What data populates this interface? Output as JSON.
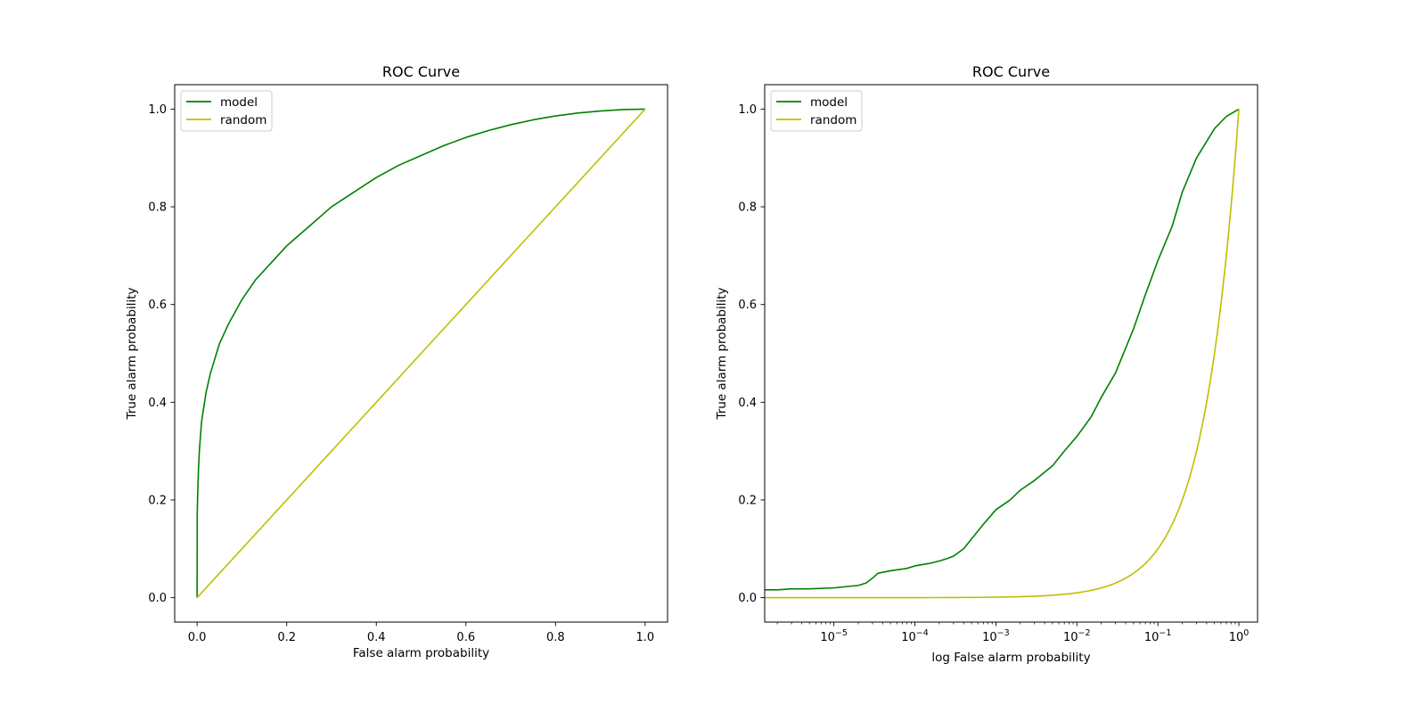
{
  "chart_data": [
    {
      "type": "line",
      "title": "ROC Curve",
      "xlabel": "False alarm probability",
      "ylabel": "True alarm probability",
      "xscale": "linear",
      "xlim": [
        -0.05,
        1.05
      ],
      "ylim": [
        -0.05,
        1.05
      ],
      "xticks": [
        0.0,
        0.2,
        0.4,
        0.6,
        0.8,
        1.0
      ],
      "xtick_labels": [
        "0.0",
        "0.2",
        "0.4",
        "0.6",
        "0.8",
        "1.0"
      ],
      "yticks": [
        0.0,
        0.2,
        0.4,
        0.6,
        0.8,
        1.0
      ],
      "ytick_labels": [
        "0.0",
        "0.2",
        "0.4",
        "0.6",
        "0.8",
        "1.0"
      ],
      "grid": false,
      "legend": "upper-left",
      "series": [
        {
          "name": "model",
          "color": "#008000",
          "x": [
            0,
            0.0003,
            0.001,
            0.003,
            0.005,
            0.01,
            0.02,
            0.03,
            0.05,
            0.07,
            0.1,
            0.13,
            0.16,
            0.2,
            0.25,
            0.3,
            0.35,
            0.4,
            0.45,
            0.5,
            0.55,
            0.6,
            0.65,
            0.7,
            0.75,
            0.8,
            0.85,
            0.9,
            0.95,
            1.0
          ],
          "y": [
            0,
            0.17,
            0.2,
            0.26,
            0.3,
            0.36,
            0.42,
            0.46,
            0.52,
            0.56,
            0.61,
            0.65,
            0.68,
            0.72,
            0.76,
            0.8,
            0.83,
            0.86,
            0.885,
            0.905,
            0.925,
            0.942,
            0.956,
            0.968,
            0.978,
            0.986,
            0.992,
            0.996,
            0.999,
            1.0
          ]
        },
        {
          "name": "random",
          "color": "#bfbf00",
          "x": [
            0,
            1.0
          ],
          "y": [
            0,
            1.0
          ]
        }
      ]
    },
    {
      "type": "line",
      "title": "ROC Curve",
      "xlabel": "log False alarm probability",
      "ylabel": "True alarm probability",
      "xscale": "log",
      "xlim": [
        1.4e-06,
        1.7
      ],
      "ylim": [
        -0.05,
        1.05
      ],
      "xticks": [
        1e-05,
        0.0001,
        0.001,
        0.01,
        0.1,
        1
      ],
      "xtick_labels": [
        {
          "base": "10",
          "exp": "−5"
        },
        {
          "base": "10",
          "exp": "−4"
        },
        {
          "base": "10",
          "exp": "−3"
        },
        {
          "base": "10",
          "exp": "−2"
        },
        {
          "base": "10",
          "exp": "−1"
        },
        {
          "base": "10",
          "exp": "0"
        }
      ],
      "yticks": [
        0.0,
        0.2,
        0.4,
        0.6,
        0.8,
        1.0
      ],
      "ytick_labels": [
        "0.0",
        "0.2",
        "0.4",
        "0.6",
        "0.8",
        "1.0"
      ],
      "grid": false,
      "legend": "upper-left",
      "series": [
        {
          "name": "model",
          "color": "#008000",
          "x": [
            1.4e-06,
            2e-06,
            3e-06,
            5e-06,
            1e-05,
            2e-05,
            2.5e-05,
            3e-05,
            3.5e-05,
            5e-05,
            8e-05,
            0.0001,
            0.00015,
            0.0002,
            0.00025,
            0.0003,
            0.0004,
            0.0005,
            0.0007,
            0.001,
            0.0015,
            0.002,
            0.003,
            0.005,
            0.007,
            0.01,
            0.015,
            0.02,
            0.03,
            0.05,
            0.07,
            0.1,
            0.15,
            0.2,
            0.3,
            0.5,
            0.7,
            1.0
          ],
          "y": [
            0.016,
            0.016,
            0.018,
            0.018,
            0.02,
            0.025,
            0.03,
            0.04,
            0.05,
            0.055,
            0.06,
            0.065,
            0.07,
            0.075,
            0.08,
            0.085,
            0.1,
            0.12,
            0.15,
            0.18,
            0.2,
            0.22,
            0.24,
            0.27,
            0.3,
            0.33,
            0.37,
            0.41,
            0.46,
            0.55,
            0.62,
            0.69,
            0.76,
            0.83,
            0.9,
            0.96,
            0.985,
            1.0
          ]
        },
        {
          "name": "random",
          "color": "#bfbf00",
          "x": [
            1.4e-06,
            1.0
          ],
          "y": [
            1.4e-06,
            1.0
          ],
          "identity": true
        }
      ]
    }
  ]
}
